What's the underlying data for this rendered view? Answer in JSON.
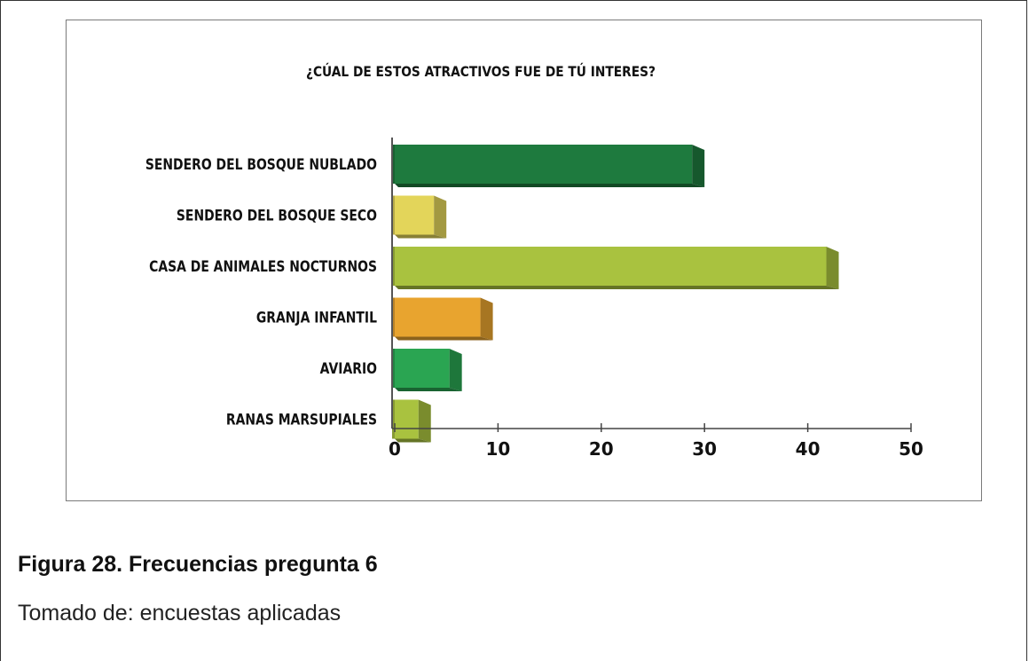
{
  "chart_data": {
    "type": "bar",
    "orientation": "horizontal",
    "title": "¿CÚAL DE ESTOS ATRACTIVOS FUE DE TÚ INTERES?",
    "categories": [
      "SENDERO DEL BOSQUE NUBLADO",
      "SENDERO DEL BOSQUE SECO",
      "CASA DE ANIMALES NOCTURNOS",
      "GRANJA INFANTIL",
      "AVIARIO",
      "RANAS MARSUPIALES"
    ],
    "values": [
      30,
      5,
      43,
      9.5,
      6.5,
      3.5
    ],
    "colors": [
      "#1e7a3e",
      "#e3d55a",
      "#a9c23f",
      "#e8a42f",
      "#2aa552",
      "#a9c23f"
    ],
    "xlim": [
      0,
      50
    ],
    "xticks": [
      0,
      10,
      20,
      30,
      40,
      50
    ],
    "grid": false,
    "style": "3d"
  },
  "figure": {
    "caption": "Figura 28. Frecuencias pregunta 6",
    "source": "Tomado de: encuestas aplicadas"
  }
}
